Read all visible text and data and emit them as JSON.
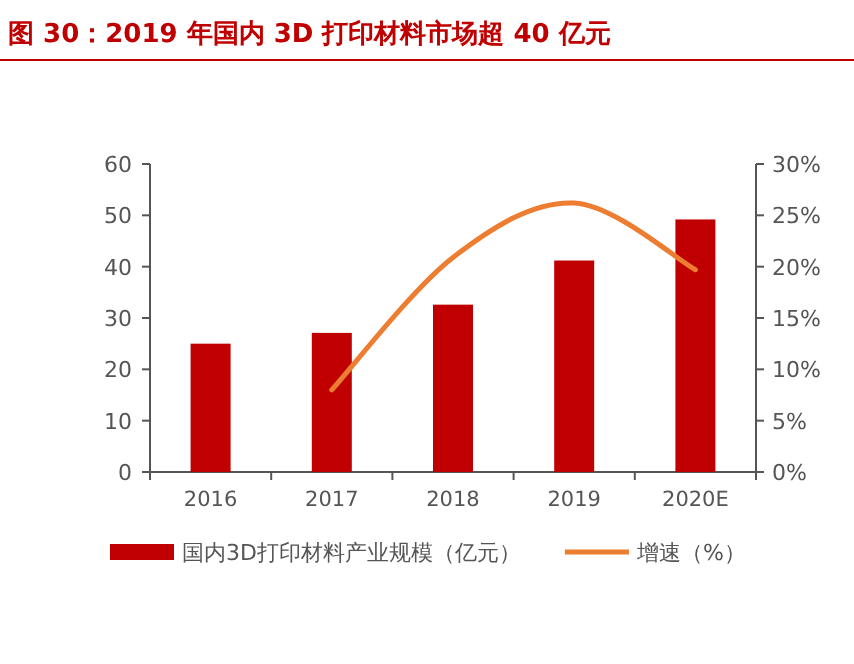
{
  "chart_data": {
    "type": "bar",
    "title": "图 30：2019 年国内 3D 打印材料市场超 40 亿元",
    "categories": [
      "2016",
      "2017",
      "2018",
      "2019",
      "2020E"
    ],
    "series": [
      {
        "name": "国内3D打印材料产业规模（亿元）",
        "color": "#c00000",
        "values": [
          25,
          27.1,
          32.6,
          41.2,
          49.2
        ]
      },
      {
        "name": "增速（%）",
        "type": "line",
        "axis": "y2",
        "color": "#ed7d31",
        "values": [
          null,
          8.0,
          20.9,
          26.2,
          19.7
        ]
      }
    ],
    "ylim": [
      0,
      60
    ],
    "yticks": [
      0,
      10,
      20,
      30,
      40,
      50,
      60
    ],
    "y2lim": [
      0,
      30
    ],
    "y2ticks": [
      {
        "value": 0,
        "label": "0%"
      },
      {
        "value": 5,
        "label": "5%"
      },
      {
        "value": 10,
        "label": "10%"
      },
      {
        "value": 15,
        "label": "15%"
      },
      {
        "value": 20,
        "label": "20%"
      },
      {
        "value": 25,
        "label": "25%"
      },
      {
        "value": 30,
        "label": "30%"
      }
    ],
    "grid": false,
    "legend": "bottom",
    "marker": "none",
    "line_style": "solid"
  }
}
